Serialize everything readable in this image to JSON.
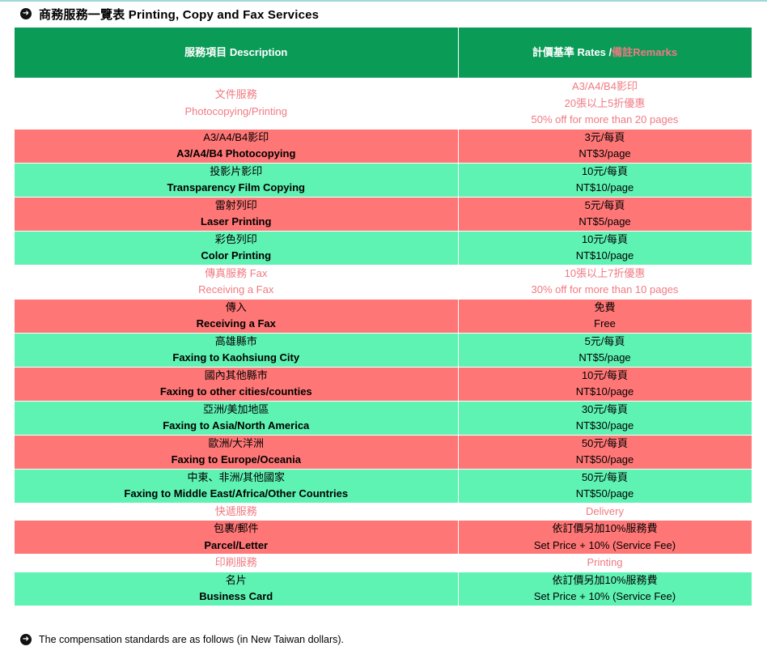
{
  "heading": {
    "icon": "arrow-right-circle-icon",
    "text": "商務服務一覽表 Printing, Copy and Fax Services"
  },
  "table": {
    "header": {
      "desc_zh": "服務項目",
      "desc_en": "Description",
      "rates_zh": "計價基準",
      "rates_en": "Rates",
      "remarks_slash": "/",
      "remarks_zh": "備註",
      "remarks_en": "Remarks"
    },
    "rows": [
      {
        "type": "white",
        "desc": [
          "文件服務",
          "Photocopying/Printing"
        ],
        "rate": [
          "A3/A4/B4影印",
          "20張以上5折優惠",
          "50% off for more than 20 pages"
        ]
      },
      {
        "type": "red",
        "desc": [
          "A3/A4/B4影印",
          "A3/A4/B4 Photocopying"
        ],
        "rate": [
          "3元/每頁",
          "NT$3/page"
        ]
      },
      {
        "type": "green",
        "desc": [
          "投影片影印",
          "Transparency Film Copying"
        ],
        "rate": [
          "10元/每頁",
          "NT$10/page"
        ]
      },
      {
        "type": "red",
        "desc": [
          "雷射列印",
          "Laser Printing"
        ],
        "rate": [
          "5元/每頁",
          "NT$5/page"
        ]
      },
      {
        "type": "green",
        "desc": [
          "彩色列印",
          "Color Printing"
        ],
        "rate": [
          "10元/每頁",
          "NT$10/page"
        ]
      },
      {
        "type": "white",
        "desc": [
          "傳真服務 Fax",
          "Receiving a Fax"
        ],
        "rate": [
          "10張以上7折優惠",
          "30% off for more than 10 pages"
        ]
      },
      {
        "type": "red",
        "desc": [
          "傳入",
          "Receiving a Fax"
        ],
        "rate": [
          "免費",
          "Free"
        ]
      },
      {
        "type": "green",
        "desc": [
          "高雄縣市",
          "Faxing to Kaohsiung City"
        ],
        "rate": [
          "5元/每頁",
          "NT$5/page"
        ]
      },
      {
        "type": "red",
        "desc": [
          "國內其他縣市",
          "Faxing to other cities/counties"
        ],
        "rate": [
          "10元/每頁",
          "NT$10/page"
        ]
      },
      {
        "type": "green",
        "desc": [
          "亞洲/美加地區",
          "Faxing to Asia/North America"
        ],
        "rate": [
          "30元/每頁",
          "NT$30/page"
        ]
      },
      {
        "type": "red",
        "desc": [
          "歐洲/大洋洲",
          "Faxing to Europe/Oceania"
        ],
        "rate": [
          "50元/每頁",
          "NT$50/page"
        ]
      },
      {
        "type": "green",
        "desc": [
          "中東、非洲/其他國家",
          "Faxing to Middle East/Africa/Other Countries"
        ],
        "rate": [
          "50元/每頁",
          "NT$50/page"
        ]
      },
      {
        "type": "white",
        "desc": [
          "快遞服務"
        ],
        "rate": [
          "Delivery"
        ]
      },
      {
        "type": "red",
        "desc": [
          "包裹/郵件",
          "Parcel/Letter"
        ],
        "rate": [
          "依訂價另加10%服務費",
          "Set Price + 10% (Service Fee)"
        ]
      },
      {
        "type": "white",
        "desc": [
          "印刷服務"
        ],
        "rate": [
          "Printing"
        ]
      },
      {
        "type": "green",
        "desc": [
          "名片",
          "Business Card"
        ],
        "rate": [
          "依訂價另加10%服務費",
          "Set Price + 10% (Service Fee)"
        ]
      }
    ]
  },
  "footnote": {
    "icon": "arrow-right-circle-icon",
    "text": "The compensation standards are as follows (in New Taiwan dollars)."
  },
  "colors": {
    "header_green": "#0a9b57",
    "row_red": "#ff7676",
    "row_green": "#5ef2b3",
    "section_text_pink": "#f07a82"
  }
}
